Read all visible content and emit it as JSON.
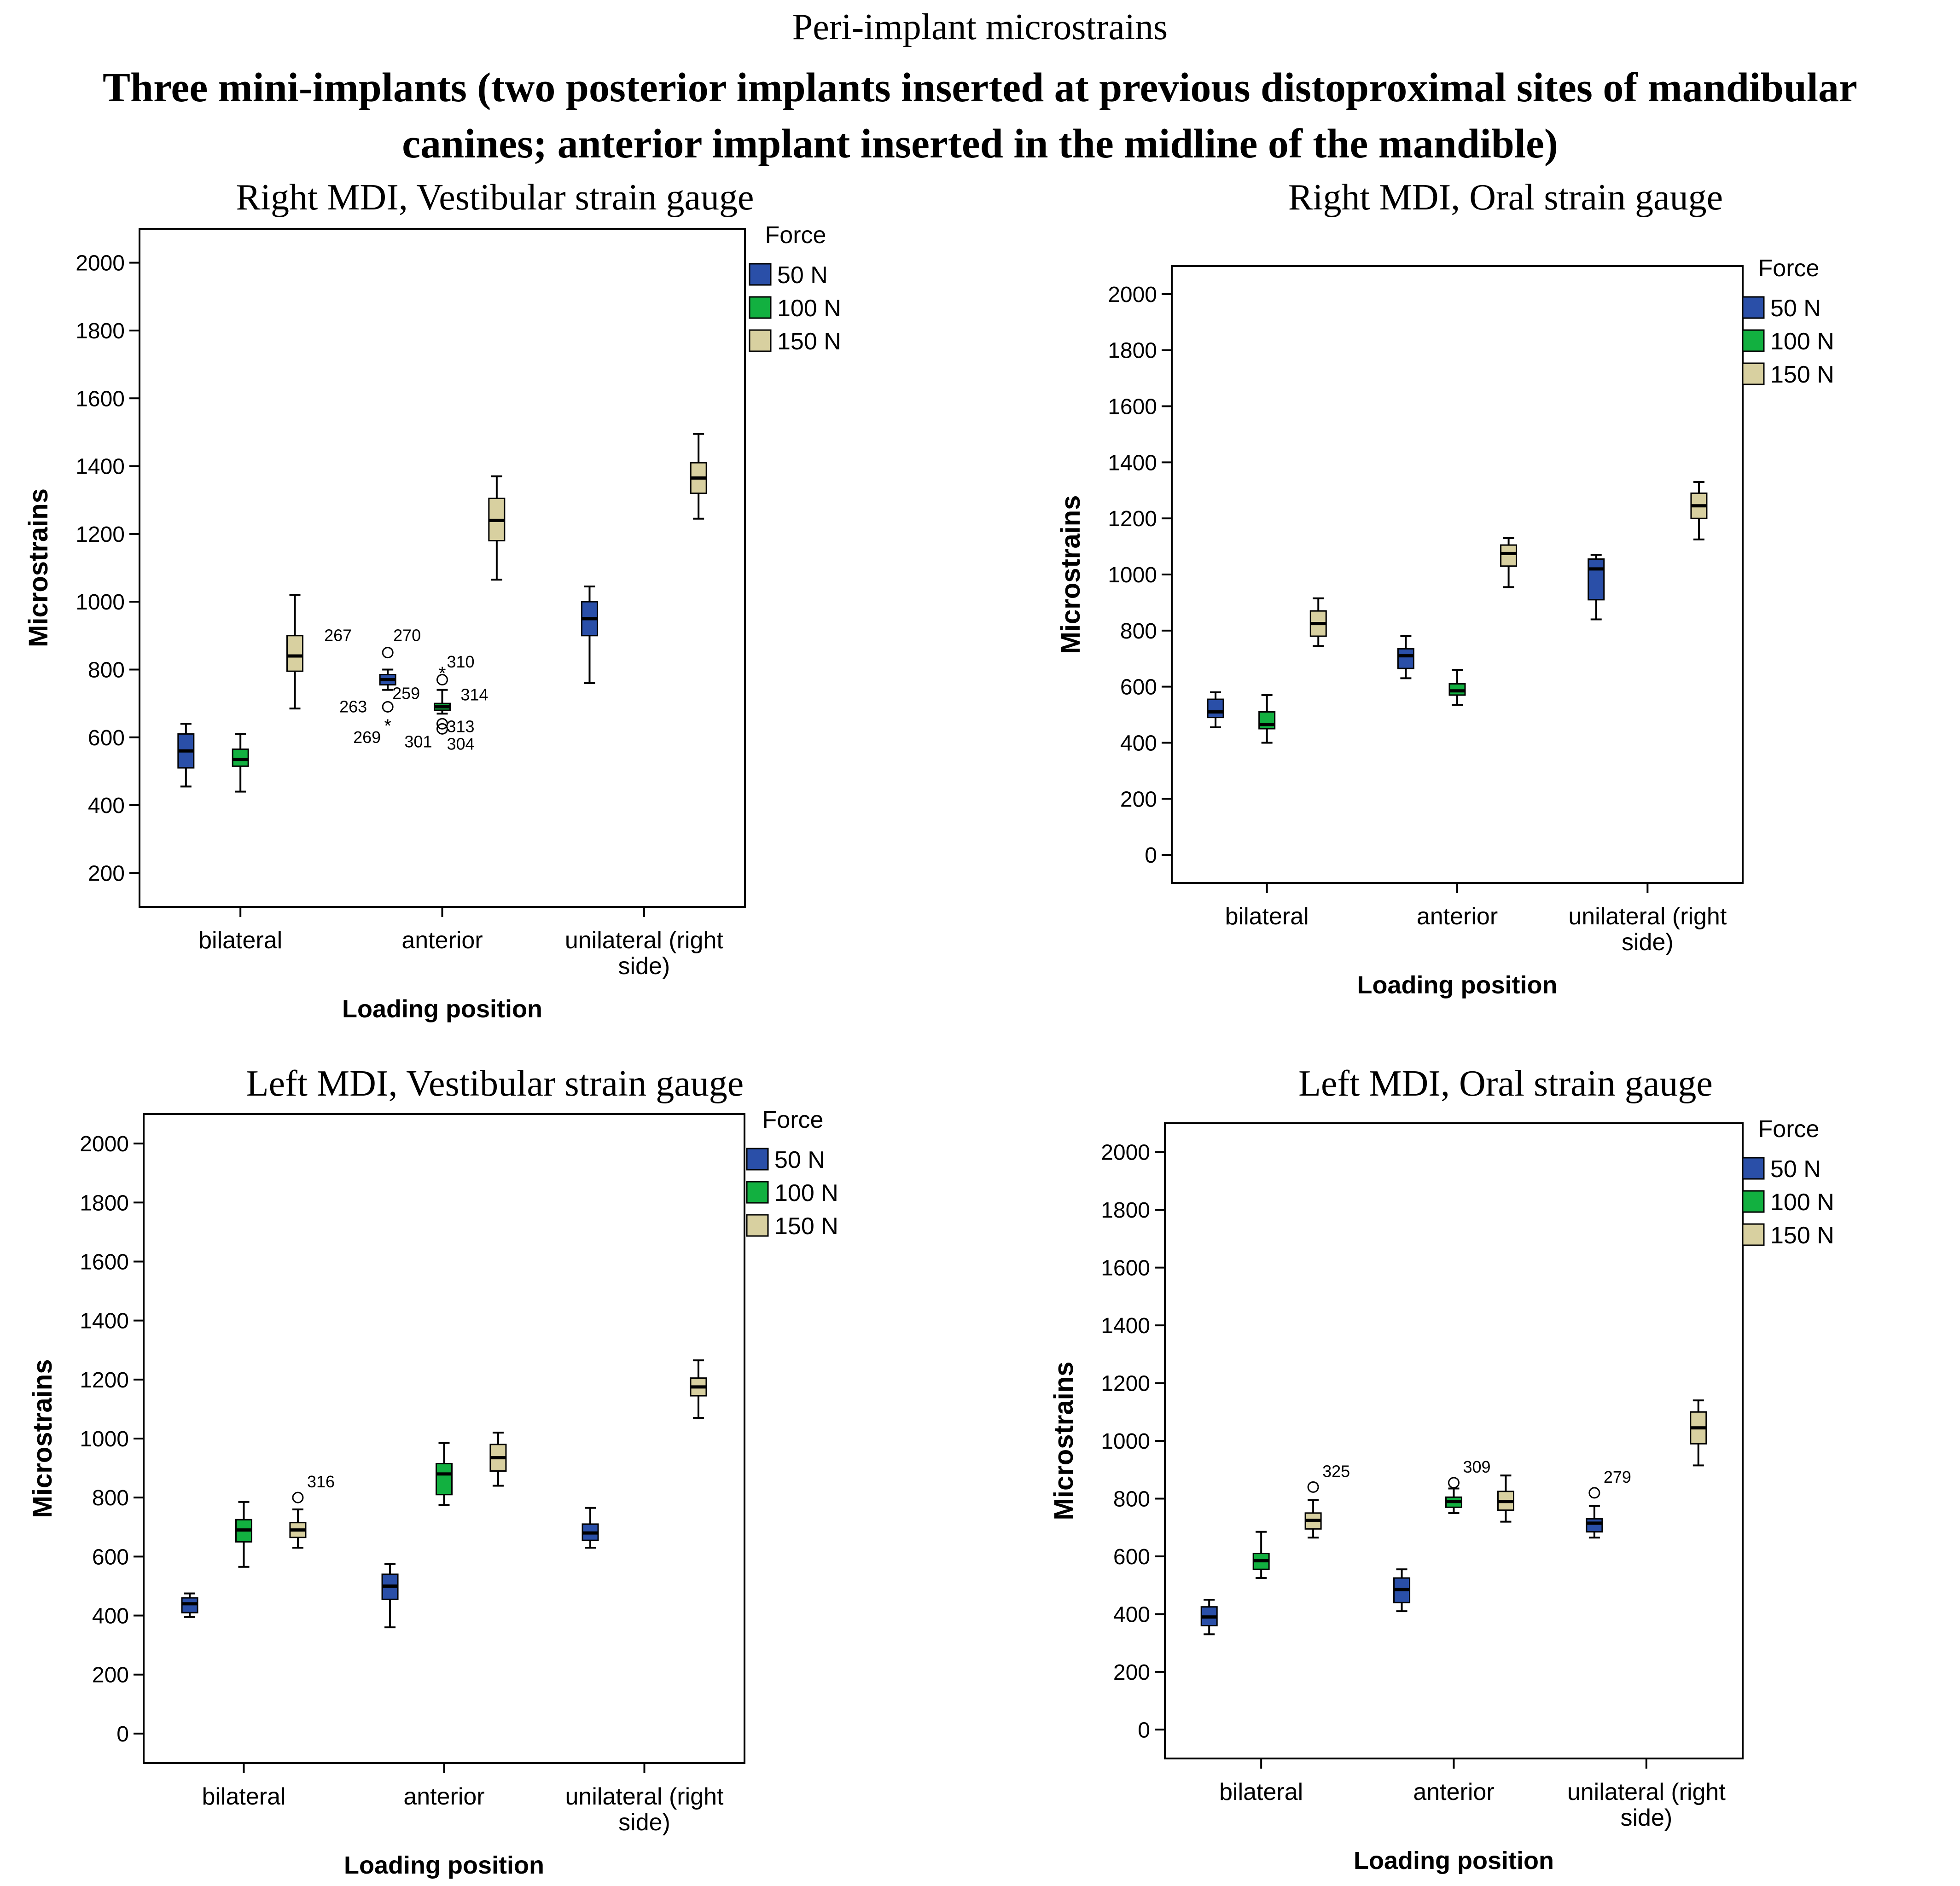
{
  "figure": {
    "supertitle": "Peri-implant microstrains",
    "title_line1": "Three mini-implants (two posterior implants inserted at previous distoproximal sites of mandibular",
    "title_line2": "canines; anterior implant inserted in the midline of the mandible)"
  },
  "colors": {
    "50 N": "#2A4FA8",
    "100 N": "#12B040",
    "150 N": "#D8D0A0",
    "axis": "#000000"
  },
  "chart_data": [
    {
      "type": "boxplot",
      "title": "Right MDI, Vestibular strain gauge",
      "xlabel": "Loading position",
      "ylabel": "Microstrains",
      "ylim": [
        100,
        2100
      ],
      "yticks": [
        "200",
        "400",
        "600",
        "800",
        "1000",
        "1200",
        "1400",
        "1600",
        "1800",
        "2000"
      ],
      "categories": [
        "bilateral",
        "anterior",
        "unilateral  (right side)"
      ],
      "legend_title": "Force",
      "legend": [
        "50 N",
        "100 N",
        "150 N"
      ],
      "series": [
        {
          "name": "50 N",
          "boxes": [
            {
              "min": 455,
              "q1": 510,
              "median": 560,
              "q3": 610,
              "max": 640
            },
            {
              "min": 740,
              "q1": 755,
              "median": 770,
              "q3": 785,
              "max": 800
            },
            {
              "min": 760,
              "q1": 900,
              "median": 950,
              "q3": 1000,
              "max": 1045
            }
          ]
        },
        {
          "name": "100 N",
          "boxes": [
            {
              "min": 440,
              "q1": 515,
              "median": 535,
              "q3": 565,
              "max": 610
            },
            {
              "min": 670,
              "q1": 680,
              "median": 690,
              "q3": 700,
              "max": 740
            },
            null
          ]
        },
        {
          "name": "150 N",
          "boxes": [
            {
              "min": 685,
              "q1": 795,
              "median": 840,
              "q3": 900,
              "max": 1020
            },
            {
              "min": 1065,
              "q1": 1180,
              "median": 1240,
              "q3": 1305,
              "max": 1370
            },
            {
              "min": 1245,
              "q1": 1320,
              "median": 1365,
              "q3": 1410,
              "max": 1495
            }
          ]
        }
      ],
      "outliers": [
        {
          "category": 1,
          "series": 0,
          "value": 850,
          "symbol": "circle",
          "label": "267"
        },
        {
          "category": 1,
          "series": 0,
          "value": 850,
          "symbol": "none",
          "label": "270"
        },
        {
          "category": 1,
          "series": 0,
          "value": 690,
          "symbol": "circle",
          "label": "263"
        },
        {
          "category": 1,
          "series": 0,
          "value": 740,
          "symbol": "none",
          "label": "259"
        },
        {
          "category": 1,
          "series": 0,
          "value": 635,
          "symbol": "star",
          "label": "269"
        },
        {
          "category": 1,
          "series": 1,
          "value": 790,
          "symbol": "star",
          "label": "310"
        },
        {
          "category": 1,
          "series": 1,
          "value": 770,
          "symbol": "circle",
          "label": "314"
        },
        {
          "category": 1,
          "series": 1,
          "value": 625,
          "symbol": "circle",
          "label": "301"
        },
        {
          "category": 1,
          "series": 1,
          "value": 640,
          "symbol": "circle",
          "label": "313"
        },
        {
          "category": 1,
          "series": 1,
          "value": 625,
          "symbol": "none",
          "label": "304"
        }
      ]
    },
    {
      "type": "boxplot",
      "title": "Right MDI, Oral strain gauge",
      "xlabel": "Loading position",
      "ylabel": "Microstrains",
      "ylim": [
        -100,
        2100
      ],
      "yticks": [
        "0",
        "200",
        "400",
        "600",
        "800",
        "1000",
        "1200",
        "1400",
        "1600",
        "1800",
        "2000"
      ],
      "categories": [
        "bilateral",
        "anterior",
        "unilateral  (right side)"
      ],
      "legend_title": "Force",
      "legend": [
        "50 N",
        "100 N",
        "150 N"
      ],
      "series": [
        {
          "name": "50 N",
          "boxes": [
            {
              "min": 455,
              "q1": 490,
              "median": 510,
              "q3": 555,
              "max": 580
            },
            {
              "min": 630,
              "q1": 665,
              "median": 710,
              "q3": 735,
              "max": 780
            },
            {
              "min": 840,
              "q1": 910,
              "median": 1020,
              "q3": 1055,
              "max": 1070
            }
          ]
        },
        {
          "name": "100 N",
          "boxes": [
            {
              "min": 400,
              "q1": 450,
              "median": 465,
              "q3": 510,
              "max": 570
            },
            {
              "min": 535,
              "q1": 570,
              "median": 585,
              "q3": 610,
              "max": 660
            },
            null
          ]
        },
        {
          "name": "150 N",
          "boxes": [
            {
              "min": 745,
              "q1": 780,
              "median": 825,
              "q3": 870,
              "max": 915
            },
            {
              "min": 955,
              "q1": 1030,
              "median": 1075,
              "q3": 1105,
              "max": 1130
            },
            {
              "min": 1125,
              "q1": 1200,
              "median": 1245,
              "q3": 1290,
              "max": 1330
            }
          ]
        }
      ],
      "outliers": []
    },
    {
      "type": "boxplot",
      "title": "Left MDI, Vestibular strain gauge",
      "xlabel": "Loading position",
      "ylabel": "Microstrains",
      "ylim": [
        -100,
        2100
      ],
      "yticks": [
        "0",
        "200",
        "400",
        "600",
        "800",
        "1000",
        "1200",
        "1400",
        "1600",
        "1800",
        "2000"
      ],
      "categories": [
        "bilateral",
        "anterior",
        "unilateral  (right side)"
      ],
      "legend_title": "Force",
      "legend": [
        "50 N",
        "100 N",
        "150 N"
      ],
      "series": [
        {
          "name": "50 N",
          "boxes": [
            {
              "min": 395,
              "q1": 410,
              "median": 440,
              "q3": 460,
              "max": 475
            },
            {
              "min": 360,
              "q1": 455,
              "median": 500,
              "q3": 540,
              "max": 575
            },
            {
              "min": 630,
              "q1": 655,
              "median": 680,
              "q3": 710,
              "max": 765
            }
          ]
        },
        {
          "name": "100 N",
          "boxes": [
            {
              "min": 565,
              "q1": 650,
              "median": 690,
              "q3": 725,
              "max": 785
            },
            {
              "min": 775,
              "q1": 810,
              "median": 880,
              "q3": 915,
              "max": 985
            },
            null
          ]
        },
        {
          "name": "150 N",
          "boxes": [
            {
              "min": 630,
              "q1": 665,
              "median": 690,
              "q3": 715,
              "max": 760
            },
            {
              "min": 840,
              "q1": 890,
              "median": 935,
              "q3": 980,
              "max": 1020
            },
            {
              "min": 1070,
              "q1": 1145,
              "median": 1175,
              "q3": 1205,
              "max": 1265
            }
          ]
        }
      ],
      "outliers": [
        {
          "category": 0,
          "series": 2,
          "value": 800,
          "symbol": "circle",
          "label": "316"
        }
      ]
    },
    {
      "type": "boxplot",
      "title": "Left MDI, Oral strain gauge",
      "xlabel": "Loading position",
      "ylabel": "Microstrains",
      "ylim": [
        -100,
        2100
      ],
      "yticks": [
        "0",
        "200",
        "400",
        "600",
        "800",
        "1000",
        "1200",
        "1400",
        "1600",
        "1800",
        "2000"
      ],
      "categories": [
        "bilateral",
        "anterior",
        "unilateral  (right side)"
      ],
      "legend_title": "Force",
      "legend": [
        "50 N",
        "100 N",
        "150 N"
      ],
      "series": [
        {
          "name": "50 N",
          "boxes": [
            {
              "min": 330,
              "q1": 360,
              "median": 390,
              "q3": 425,
              "max": 450
            },
            {
              "min": 410,
              "q1": 440,
              "median": 485,
              "q3": 525,
              "max": 555
            },
            {
              "min": 665,
              "q1": 685,
              "median": 715,
              "q3": 730,
              "max": 775
            }
          ]
        },
        {
          "name": "100 N",
          "boxes": [
            {
              "min": 525,
              "q1": 555,
              "median": 585,
              "q3": 610,
              "max": 685
            },
            {
              "min": 750,
              "q1": 770,
              "median": 790,
              "q3": 805,
              "max": 835
            },
            null
          ]
        },
        {
          "name": "150 N",
          "boxes": [
            {
              "min": 665,
              "q1": 695,
              "median": 725,
              "q3": 750,
              "max": 795
            },
            {
              "min": 720,
              "q1": 760,
              "median": 790,
              "q3": 825,
              "max": 880
            },
            {
              "min": 915,
              "q1": 990,
              "median": 1045,
              "q3": 1100,
              "max": 1140
            }
          ]
        }
      ],
      "outliers": [
        {
          "category": 0,
          "series": 2,
          "value": 840,
          "symbol": "circle",
          "label": "325"
        },
        {
          "category": 1,
          "series": 1,
          "value": 855,
          "symbol": "circle",
          "label": "309"
        },
        {
          "category": 2,
          "series": 0,
          "value": 820,
          "symbol": "circle",
          "label": "279"
        }
      ]
    }
  ]
}
